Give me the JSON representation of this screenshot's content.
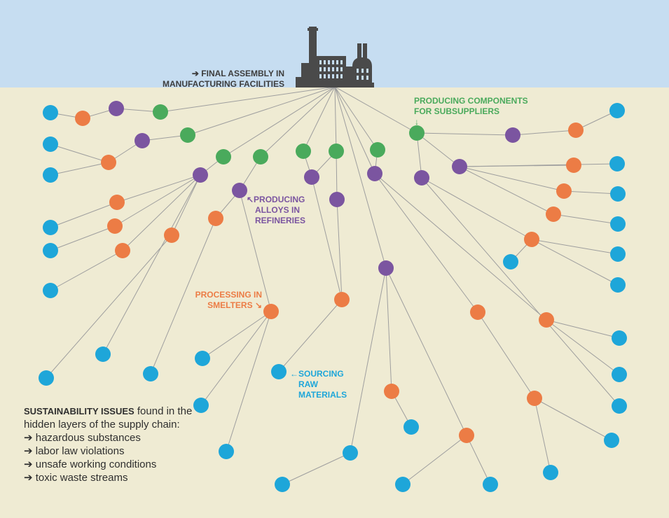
{
  "colors": {
    "sky": "#c6ddf1",
    "ground": "#efebd3",
    "line": "#9e9e9e",
    "factory": "#4a4a4a",
    "assembly": "#3d3d3d",
    "components": "#4aaa5c",
    "alloys": "#7b55a0",
    "smelters": "#ec7c45",
    "raw": "#1ea6d9"
  },
  "labels": {
    "final_assembly": [
      "➔ FINAL ASSEMBLY IN",
      "MANUFACTURING FACILITIES"
    ],
    "components": [
      "PRODUCING COMPONENTS",
      "FOR SUBSUPPLIERS"
    ],
    "components_arrow": "↓",
    "alloys": [
      "↖PRODUCING",
      "ALLOYS IN",
      "REFINERIES"
    ],
    "smelters": [
      "PROCESSING IN",
      "SMELTERS ↘"
    ],
    "raw": [
      "←SOURCING",
      "RAW",
      "MATERIALS"
    ]
  },
  "issues": {
    "title_bold": "SUSTAINABILITY ISSUES",
    "title_rest": "found in the hidden layers of the supply chain:",
    "items": [
      "➔ hazardous substances",
      "➔ labor law violations",
      "➔ unsafe working conditions",
      "➔ toxic waste streams"
    ]
  }
}
